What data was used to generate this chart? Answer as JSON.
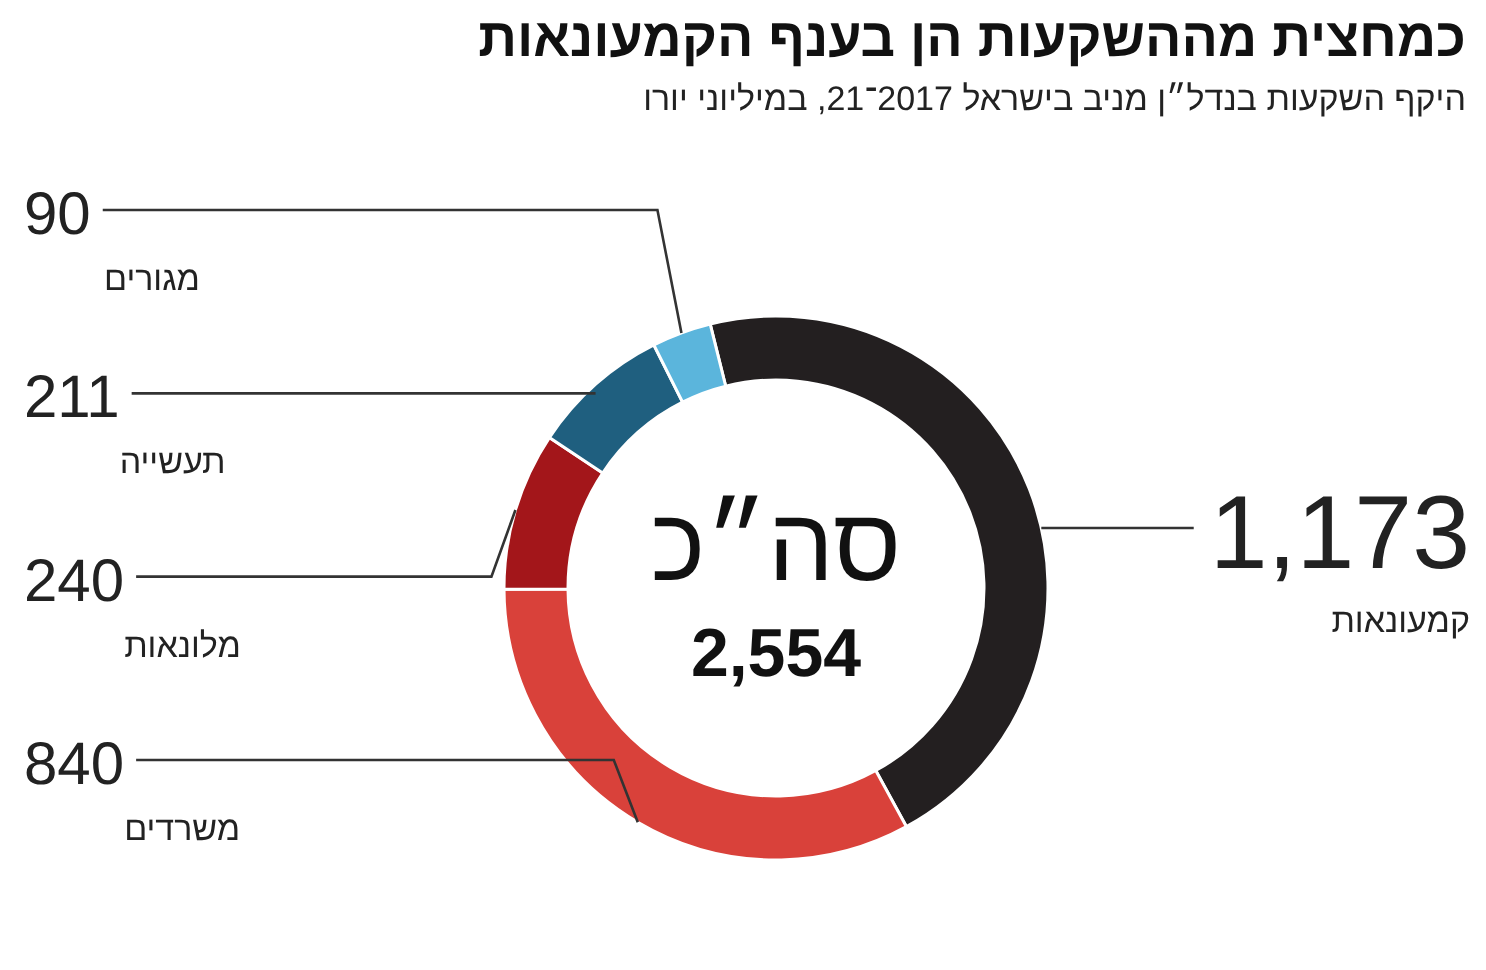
{
  "chart_data": {
    "type": "donut",
    "title": "כמחצית מההשקעות הן בענף הקמעונאות",
    "subtitle": "היקף השקעות בנדל״ן מניב בישראל 2017־21, במיליוני יורו",
    "categories": [
      "קמעונאות",
      "משרדים",
      "מלונאות",
      "תעשייה",
      "מגורים"
    ],
    "values": [
      1173,
      840,
      240,
      211,
      90
    ],
    "value_labels": [
      "1,173",
      "840",
      "240",
      "211",
      "90"
    ],
    "colors": [
      "#231f20",
      "#d9413a",
      "#a3161a",
      "#1f5f7f",
      "#5bb5dc"
    ],
    "annotations": [
      "סה״כ",
      "2,554"
    ]
  }
}
